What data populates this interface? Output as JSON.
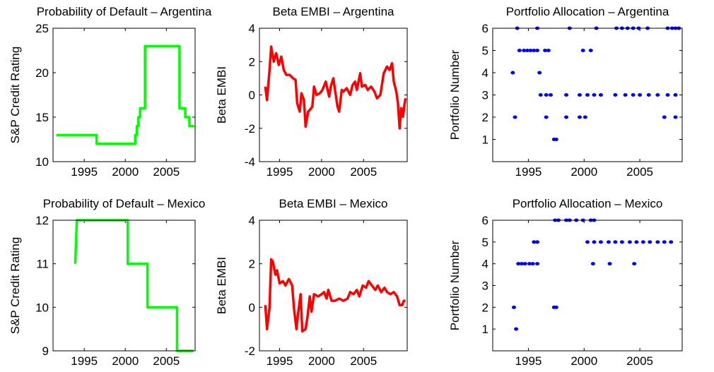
{
  "chart_data": [
    {
      "type": "line",
      "title": "Probability of Default – Argentina",
      "ylabel": "S&P Credit Rating",
      "color": "#00ff00",
      "x": [
        1991.6,
        1996.5,
        1996.5,
        2001.2,
        2001.2,
        2001.4,
        2001.4,
        2001.6,
        2001.6,
        2001.8,
        2001.8,
        2002.4,
        2002.4,
        2006.6,
        2006.6,
        2007.3,
        2007.3,
        2007.8,
        2007.8,
        2008.4
      ],
      "values": [
        13,
        13,
        12,
        12,
        13,
        13,
        14,
        14,
        15,
        15,
        16,
        16,
        23,
        23,
        16,
        16,
        15,
        15,
        14,
        14
      ],
      "xlim": [
        1991.2,
        2008.5
      ],
      "ylim": [
        10,
        25
      ],
      "xticks": [
        1995,
        2000,
        2005
      ],
      "yticks": [
        10,
        15,
        20,
        25
      ]
    },
    {
      "type": "line",
      "title": "Beta EMBI – Argentina",
      "ylabel": "Beta EMBI",
      "color": "#ff0000",
      "x": [
        1993.3,
        1993.5,
        1993.8,
        1994.0,
        1994.3,
        1994.6,
        1994.9,
        1995.2,
        1995.5,
        1995.8,
        1996.2,
        1996.6,
        1996.9,
        1997.1,
        1997.4,
        1997.6,
        1997.9,
        1998.1,
        1998.4,
        1998.6,
        1998.9,
        1999.1,
        1999.4,
        1999.8,
        2000.1,
        2000.5,
        2000.9,
        2001.1,
        2001.4,
        2001.6,
        2001.9,
        2002.1,
        2002.4,
        2002.6,
        2003.0,
        2003.4,
        2003.7,
        2004.0,
        2004.2,
        2004.6,
        2004.8,
        2005.2,
        2005.5,
        2005.9,
        2006.3,
        2006.6,
        2007.0,
        2007.4,
        2007.8,
        2008.1,
        2008.4,
        2008.6,
        2008.9,
        2009.1,
        2009.3,
        2009.5,
        2009.7,
        2009.9,
        2010.0
      ],
      "values": [
        0.5,
        -0.3,
        1.5,
        2.9,
        2.0,
        2.5,
        1.8,
        2.3,
        1.5,
        1.2,
        1.2,
        1.0,
        0.9,
        -0.5,
        -1.0,
        0.1,
        -0.3,
        -1.9,
        -1.0,
        -0.9,
        -0.7,
        0.5,
        0.0,
        0.1,
        0.3,
        0.8,
        -0.1,
        0.5,
        1.0,
        0.3,
        -0.7,
        -1.0,
        0.3,
        0.2,
        0.4,
        0.0,
        0.6,
        0.8,
        0.3,
        1.3,
        0.5,
        0.6,
        0.3,
        0.5,
        0.2,
        -0.2,
        0.0,
        1.3,
        1.7,
        1.5,
        1.9,
        0.8,
        0.2,
        -0.5,
        -2.0,
        -0.8,
        -1.3,
        -0.5,
        -0.2
      ],
      "xlim": [
        1992.6,
        2010.2
      ],
      "ylim": [
        -4,
        4
      ],
      "xticks": [
        1995,
        2000,
        2005
      ],
      "yticks": [
        -4,
        -2,
        0,
        2,
        4
      ]
    },
    {
      "type": "scatter",
      "title": "Portfolio Allocation – Argentina",
      "ylabel": "Portfolio Number",
      "color": "#0000ff",
      "x": [
        1994.0,
        1995.8,
        1998.7,
        2001.1,
        2002.9,
        2003.4,
        2003.9,
        2004.4,
        2004.9,
        2005.7,
        2007.5,
        2007.9,
        2008.2,
        2008.5,
        1994.2,
        1994.6,
        1994.9,
        1995.2,
        1995.5,
        1995.8,
        1996.5,
        1996.8,
        1999.9,
        2000.6,
        1993.6,
        1996.0,
        1996.1,
        1996.6,
        1997.0,
        1998.4,
        1999.6,
        2000.3,
        2000.9,
        2001.5,
        2002.8,
        2003.7,
        2004.4,
        2005.0,
        2005.8,
        2006.6,
        2007.5,
        2008.2,
        1993.8,
        1996.6,
        1998.4,
        1999.6,
        2000.1,
        2007.2,
        2008.2,
        1997.3,
        1997.5
      ],
      "values": [
        6,
        6,
        6,
        6,
        6,
        6,
        6,
        6,
        6,
        6,
        6,
        6,
        6,
        6,
        5,
        5,
        5,
        5,
        5,
        5,
        5,
        5,
        5,
        5,
        4,
        4,
        3,
        3,
        3,
        3,
        3,
        3,
        3,
        3,
        3,
        3,
        3,
        3,
        3,
        3,
        3,
        3,
        2,
        2,
        2,
        2,
        2,
        2,
        2,
        1,
        1
      ],
      "xlim": [
        1991.8,
        2008.8
      ],
      "ylim": [
        0,
        6
      ],
      "xticks": [
        1995,
        2000,
        2005
      ],
      "yticks": [
        1,
        2,
        3,
        4,
        5,
        6
      ]
    },
    {
      "type": "line",
      "title": "Probability of Default – Mexico",
      "ylabel": "S&P Credit Rating",
      "color": "#00ff00",
      "x": [
        1993.9,
        1994.1,
        1994.1,
        2000.3,
        2000.3,
        2002.7,
        2002.7,
        2006.3,
        2006.3,
        2008.3
      ],
      "values": [
        11,
        12,
        12,
        12,
        11,
        11,
        10,
        10,
        9,
        9
      ],
      "xlim": [
        1991.2,
        2008.5
      ],
      "ylim": [
        9,
        12
      ],
      "xticks": [
        1995,
        2000,
        2005
      ],
      "yticks": [
        9,
        10,
        11,
        12
      ]
    },
    {
      "type": "line",
      "title": "Beta EMBI – Mexico",
      "ylabel": "Beta EMBI",
      "color": "#ff0000",
      "x": [
        1993.3,
        1993.5,
        1993.8,
        1994.0,
        1994.2,
        1994.5,
        1994.7,
        1995.0,
        1995.4,
        1995.7,
        1996.1,
        1996.5,
        1996.7,
        1997.0,
        1997.2,
        1997.5,
        1997.7,
        1998.1,
        1998.3,
        1998.6,
        1998.8,
        1999.1,
        1999.6,
        2000.0,
        2000.3,
        2000.6,
        2000.8,
        2001.2,
        2001.6,
        2002.1,
        2002.6,
        2003.1,
        2003.4,
        2003.8,
        2004.2,
        2004.5,
        2004.9,
        2005.3,
        2005.6,
        2006.0,
        2006.4,
        2006.7,
        2007.1,
        2007.5,
        2007.8,
        2008.2,
        2008.6,
        2009.0,
        2009.3,
        2009.6,
        2009.8,
        2010.0
      ],
      "values": [
        0.1,
        -1.0,
        0.0,
        2.2,
        2.1,
        1.5,
        1.7,
        1.1,
        1.2,
        1.0,
        1.3,
        1.0,
        0.0,
        -1.0,
        -0.3,
        0.6,
        -1.1,
        -1.0,
        -0.5,
        0.5,
        -0.2,
        0.6,
        0.5,
        0.6,
        0.7,
        0.4,
        0.8,
        0.3,
        0.3,
        0.4,
        0.3,
        0.4,
        0.7,
        0.6,
        0.8,
        0.5,
        1.0,
        0.9,
        1.2,
        1.0,
        0.8,
        1.0,
        0.7,
        0.9,
        0.7,
        0.6,
        0.7,
        0.5,
        0.1,
        0.1,
        0.3,
        0.3
      ],
      "xlim": [
        1992.6,
        2010.2
      ],
      "ylim": [
        -2,
        4
      ],
      "xticks": [
        1995,
        2000,
        2005
      ],
      "yticks": [
        -2,
        0,
        2,
        4
      ]
    },
    {
      "type": "scatter",
      "title": "Portfolio Allocation – Mexico",
      "ylabel": "Portfolio Number",
      "color": "#0000ff",
      "x": [
        1997.4,
        1997.7,
        1998.4,
        1998.7,
        1999.3,
        1999.9,
        2000.6,
        2000.9,
        1995.5,
        1995.8,
        2000.3,
        2000.9,
        2001.5,
        2002.2,
        2002.8,
        2003.4,
        2004.1,
        2004.7,
        2005.3,
        2005.9,
        2006.6,
        2007.2,
        2007.8,
        1994.1,
        1994.4,
        1994.7,
        1995.1,
        1995.4,
        1995.8,
        2000.8,
        2002.3,
        2004.5,
        1993.7,
        1997.3,
        1997.5,
        1993.9
      ],
      "values": [
        6,
        6,
        6,
        6,
        6,
        6,
        6,
        6,
        5,
        5,
        5,
        5,
        5,
        5,
        5,
        5,
        5,
        5,
        5,
        5,
        5,
        5,
        5,
        4,
        4,
        4,
        4,
        4,
        4,
        4,
        4,
        4,
        2,
        2,
        2,
        1
      ],
      "xlim": [
        1991.8,
        2008.8
      ],
      "ylim": [
        0,
        6
      ],
      "xticks": [
        1995,
        2000,
        2005
      ],
      "yticks": [
        1,
        2,
        3,
        4,
        5,
        6
      ]
    }
  ]
}
